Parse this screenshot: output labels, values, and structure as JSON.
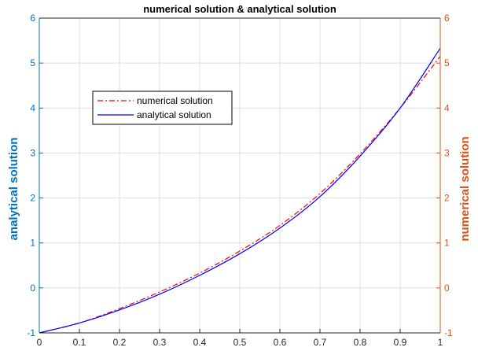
{
  "chart_data": {
    "type": "line",
    "title": "numerical solution & analytical solution",
    "xlim": [
      0,
      1
    ],
    "x_ticks": [
      "0",
      "0.1",
      "0.2",
      "0.3",
      "0.4",
      "0.5",
      "0.6",
      "0.7",
      "0.8",
      "0.9",
      "1"
    ],
    "left_axis": {
      "label": "analytical solution",
      "color": "#0072bd",
      "ylim": [
        -1,
        6
      ],
      "ticks": [
        "-1",
        "0",
        "1",
        "2",
        "3",
        "4",
        "5",
        "6"
      ]
    },
    "right_axis": {
      "label": "numerical solution",
      "color": "#d95319",
      "ylim": [
        -1,
        6
      ],
      "ticks": [
        "-1",
        "0",
        "1",
        "2",
        "3",
        "4",
        "5",
        "6"
      ]
    },
    "grid": true,
    "legend_position": "upper-left",
    "series": [
      {
        "name": "numerical solution",
        "color": "#ff0000",
        "style": "dash-dot",
        "x": [
          0,
          0.1,
          0.2,
          0.3,
          0.4,
          0.5,
          0.6,
          0.7,
          0.8,
          0.9,
          1.0
        ],
        "y": [
          -1.0,
          -0.78,
          -0.46,
          -0.09,
          0.33,
          0.82,
          1.39,
          2.1,
          2.98,
          4.0,
          5.15
        ]
      },
      {
        "name": "analytical solution",
        "color": "#0000ff",
        "style": "solid",
        "x": [
          0,
          0.1,
          0.2,
          0.3,
          0.4,
          0.5,
          0.6,
          0.7,
          0.8,
          0.9,
          1.0
        ],
        "y": [
          -1.0,
          -0.78,
          -0.49,
          -0.14,
          0.28,
          0.76,
          1.33,
          2.03,
          2.93,
          4.0,
          5.33
        ]
      }
    ]
  }
}
